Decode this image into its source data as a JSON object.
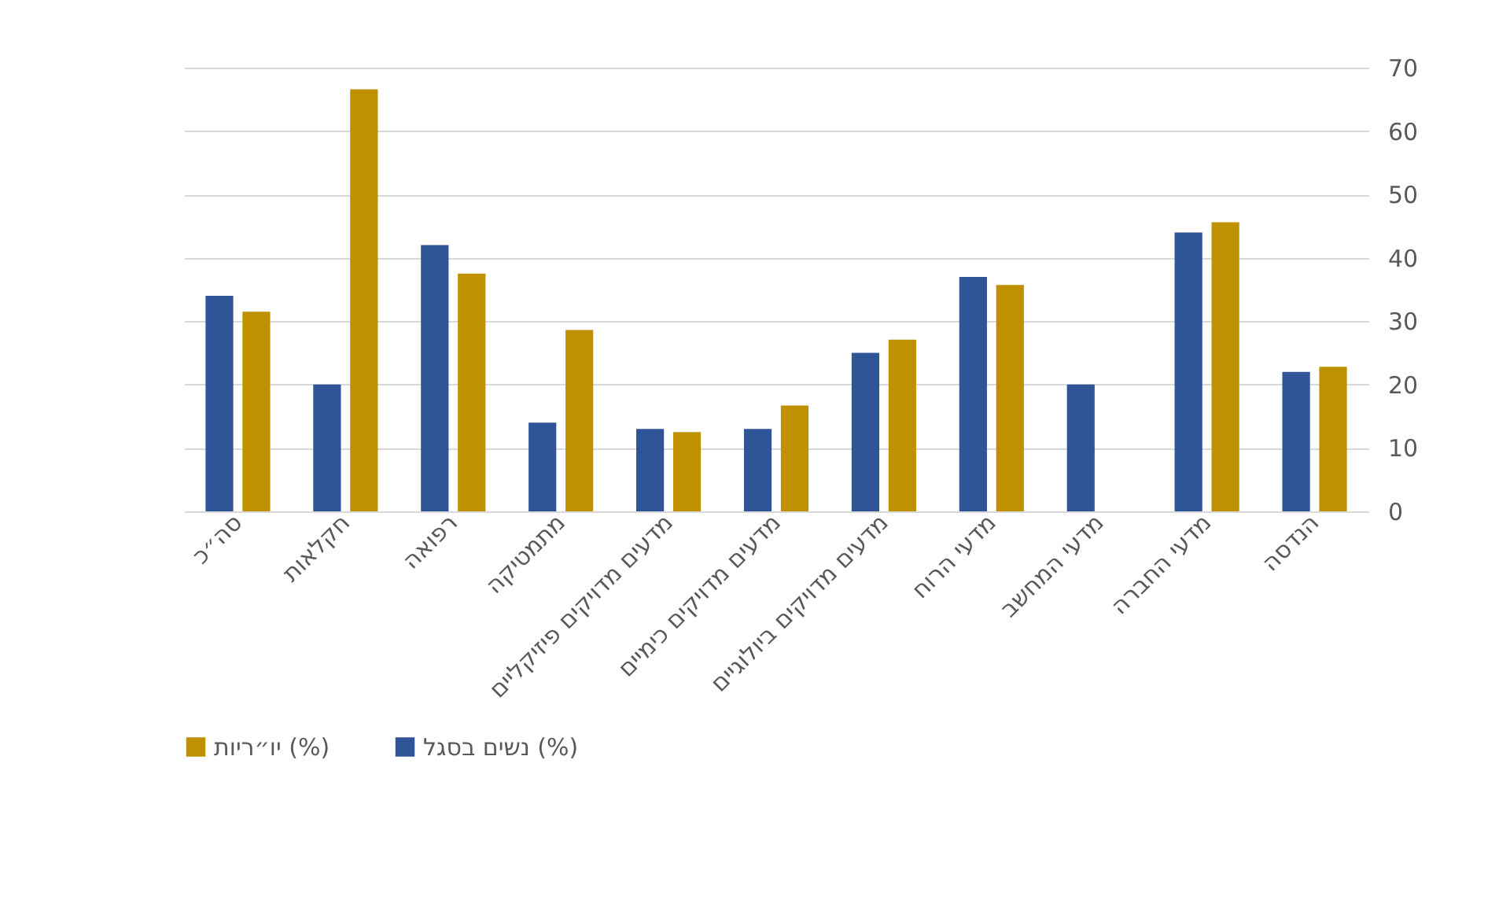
{
  "chart_data": {
    "type": "bar",
    "categories": [
      "סה״כ",
      "חקלאות",
      "רפואה",
      "מתמטיקה",
      "מדעים מדויקים פיזיקליים",
      "מדעים מדויקים כימיים",
      "מדעים מדויקים ביולוגיים",
      "מדעי הרוח",
      "מדעי המחשב",
      "מדעי החברה",
      "הנדסה"
    ],
    "series": [
      {
        "name": "נשים בסגל (%)",
        "color": "#2f5597",
        "values": [
          34,
          20,
          42,
          14,
          13,
          13,
          25,
          37,
          20,
          44,
          22
        ]
      },
      {
        "name": "יו״ריות (%)",
        "color": "#bf9000",
        "values": [
          31.5,
          66.6,
          37.5,
          28.6,
          12.5,
          16.7,
          27.1,
          35.7,
          0,
          45.6,
          22.8
        ]
      }
    ],
    "ylim": [
      0,
      70
    ],
    "yticks": [
      0,
      10,
      20,
      30,
      40,
      50,
      60,
      70
    ],
    "grid": "y",
    "legend": "bottom"
  }
}
